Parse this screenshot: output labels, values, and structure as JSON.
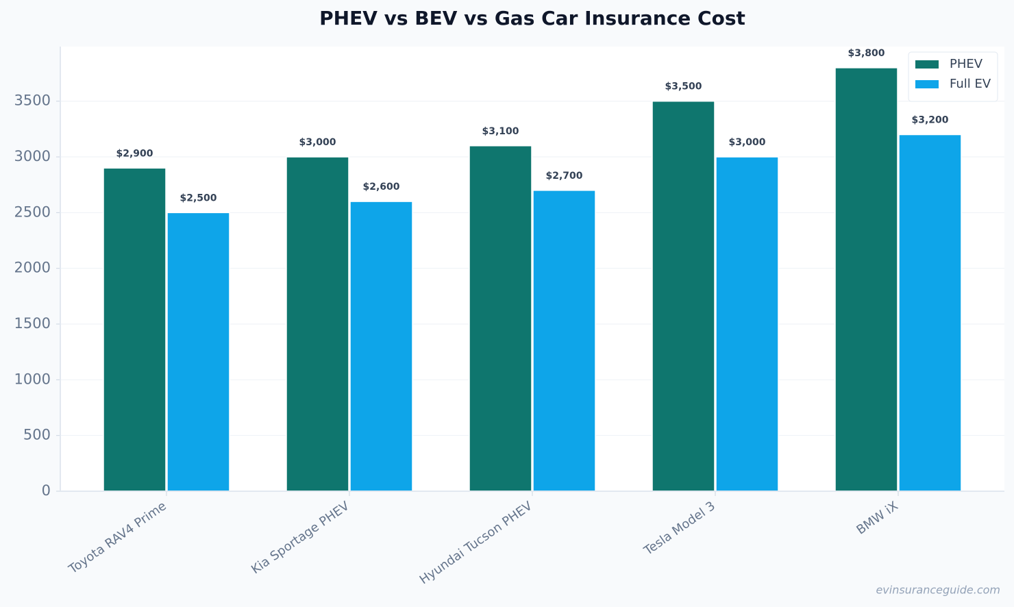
{
  "chart_data": {
    "type": "bar",
    "title": "PHEV vs BEV vs Gas Car Insurance Cost",
    "categories": [
      "Toyota RAV4 Prime",
      "Kia Sportage PHEV",
      "Hyundai Tucson PHEV",
      "Tesla Model 3",
      "BMW iX"
    ],
    "series": [
      {
        "name": "PHEV",
        "color": "#0f766e",
        "values": [
          2900,
          3000,
          3100,
          3500,
          3800
        ],
        "value_labels": [
          "$2,900",
          "$3,000",
          "$3,100",
          "$3,500",
          "$3,800"
        ]
      },
      {
        "name": "Full EV",
        "color": "#0ea5e9",
        "values": [
          2500,
          2600,
          2700,
          3000,
          3200
        ],
        "value_labels": [
          "$2,500",
          "$2,600",
          "$2,700",
          "$3,000",
          "$3,200"
        ]
      }
    ],
    "ylim": [
      0,
      3990
    ],
    "yticks": [
      0,
      500,
      1000,
      1500,
      2000,
      2500,
      3000,
      3500
    ],
    "grid": true,
    "legend": "upper right",
    "watermark": "evinsuranceguide.com"
  }
}
